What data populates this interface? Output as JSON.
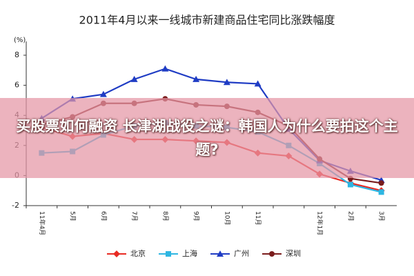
{
  "chart_data": {
    "type": "line",
    "title": "2011年4月以来一线城市新建商品住宅同比涨跌幅度",
    "y_label": "(%)",
    "categories": [
      "11年4月",
      "5月",
      "6月",
      "7月",
      "8月",
      "9月",
      "10月",
      "11月",
      null,
      "12年1月",
      "2月",
      "3月"
    ],
    "series": [
      {
        "name": "北京",
        "color": "#e82a22",
        "marker": "diamond",
        "values": [
          3.2,
          2.6,
          2.8,
          2.4,
          2.4,
          2.3,
          2.2,
          1.5,
          1.3,
          0.1,
          -0.5,
          -1.0
        ]
      },
      {
        "name": "上海",
        "color": "#2eb6e2",
        "marker": "square",
        "values": [
          1.5,
          1.6,
          2.7,
          3.3,
          3.5,
          3.3,
          3.2,
          2.9,
          2.0,
          0.8,
          -0.6,
          -1.1
        ]
      },
      {
        "name": "广州",
        "color": "#1f3cc4",
        "marker": "triangle",
        "values": [
          3.8,
          5.1,
          5.4,
          6.4,
          7.1,
          6.4,
          6.2,
          6.1,
          3.1,
          1.0,
          0.3,
          -0.3
        ]
      },
      {
        "name": "深圳",
        "color": "#7a1c1c",
        "marker": "circle",
        "values": [
          3.4,
          3.9,
          4.8,
          4.8,
          5.1,
          4.7,
          4.6,
          4.2,
          3.3,
          1.1,
          -0.2,
          -0.5
        ]
      }
    ],
    "ylim": [
      -2,
      8
    ],
    "yticks": [
      -2,
      0,
      2,
      4,
      6,
      8
    ]
  },
  "banner": {
    "text": "买股票如何融资 长津湖战役之谜：韩国人为什么要拍这个主题?"
  }
}
